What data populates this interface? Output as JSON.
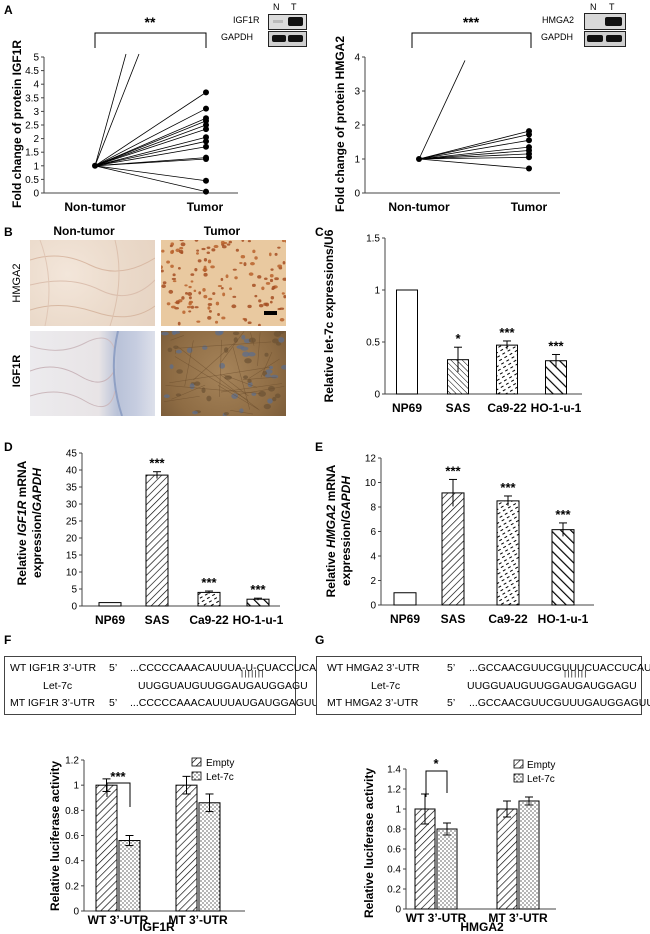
{
  "panels": {
    "A": "A",
    "B": "B",
    "C": "C",
    "D": "D",
    "E": "E",
    "F": "F",
    "G": "G"
  },
  "colors": {
    "text": "#000000",
    "axis": "#444444",
    "line": "#000000",
    "ihc_hmga2_normal": "#efe3d8",
    "ihc_hmga2_tumor": "#e6c49a",
    "ihc_igf1r_normal": "#e4e2e6",
    "ihc_igf1r_tumor": "#9a7a4c"
  },
  "blot_A": {
    "lane_n": "N",
    "lane_t": "T",
    "row1": "IGF1R",
    "row2": "GAPDH"
  },
  "blot_A2": {
    "lane_n": "N",
    "lane_t": "T",
    "row1": "HMGA2",
    "row2": "GAPDH"
  },
  "ihc": {
    "col1": "Non-tumor",
    "col2": "Tumor",
    "row1": "HMGA2",
    "row2": "IGF1R"
  },
  "chart_data": [
    {
      "id": "A-left",
      "type": "line",
      "ylabel": "Fold change of protein IGF1R",
      "categories": [
        "Non-tumor",
        "Tumor"
      ],
      "ylim": [
        0,
        5
      ],
      "yticks": [
        "0",
        "0.5",
        "1",
        "1.5",
        "2",
        "2.5",
        "3",
        "3.5",
        "4",
        "4.5",
        "5"
      ],
      "significance": "**",
      "baseline": 1,
      "tumor_values": [
        3.7,
        3.1,
        2.75,
        2.65,
        2.5,
        2.35,
        2.05,
        1.9,
        1.7,
        1.3,
        1.25,
        0.45,
        0.05
      ],
      "outliers_above_axis": 2
    },
    {
      "id": "A-right",
      "type": "line",
      "ylabel": "Fold change of protein HMGA2",
      "categories": [
        "Non-tumor",
        "Tumor"
      ],
      "ylim": [
        0,
        4
      ],
      "yticks": [
        "0",
        "1",
        "2",
        "3",
        "4"
      ],
      "significance": "***",
      "baseline": 1,
      "tumor_values": [
        1.82,
        1.72,
        1.55,
        1.35,
        1.25,
        1.15,
        1.05,
        0.72
      ],
      "outlier_value": 3.9
    },
    {
      "id": "C",
      "type": "bar",
      "ylabel": "Relative let-7c expressions/U6",
      "categories": [
        "NP69",
        "SAS",
        "Ca9-22",
        "HO-1-u-1"
      ],
      "values": [
        1,
        0.33,
        0.47,
        0.32
      ],
      "errors": [
        0,
        0.12,
        0.04,
        0.06
      ],
      "stars": [
        "",
        "*",
        "***",
        "***"
      ],
      "ylim": [
        0,
        1.5
      ],
      "yticks": [
        "0",
        "0.5",
        "1",
        "1.5"
      ]
    },
    {
      "id": "D",
      "type": "bar",
      "ylabel_line1": "Relative ",
      "ylabel_italic1": "IGF1R",
      "ylabel_line1b": " mRNA",
      "ylabel_line2": "expression/",
      "ylabel_italic2": "GAPDH",
      "categories": [
        "NP69",
        "SAS",
        "Ca9-22",
        "HO-1-u-1"
      ],
      "values": [
        1,
        38.5,
        4,
        2
      ],
      "errors": [
        0,
        1.0,
        0.4,
        0.3
      ],
      "stars": [
        "",
        "***",
        "***",
        "***"
      ],
      "ylim": [
        0,
        45
      ],
      "yticks": [
        "0",
        "5",
        "10",
        "15",
        "20",
        "25",
        "30",
        "35",
        "40",
        "45"
      ]
    },
    {
      "id": "E",
      "type": "bar",
      "ylabel_line1": "Relative ",
      "ylabel_italic1": "HMGA2",
      "ylabel_line1b": " mRNA",
      "ylabel_line2": "expression/",
      "ylabel_italic2": "GAPDH",
      "categories": [
        "NP69",
        "SAS",
        "Ca9-22",
        "HO-1-u-1"
      ],
      "values": [
        1,
        9.15,
        8.5,
        6.15
      ],
      "errors": [
        0,
        1.1,
        0.4,
        0.55
      ],
      "stars": [
        "",
        "***",
        "***",
        "***"
      ],
      "ylim": [
        0,
        12
      ],
      "yticks": [
        "0",
        "2",
        "4",
        "6",
        "8",
        "10",
        "12"
      ]
    },
    {
      "id": "F",
      "type": "bar",
      "title": "IGF1R",
      "ylabel": "Relative luciferase activity",
      "categories": [
        "WT 3’-UTR",
        "MT 3’-UTR"
      ],
      "series": [
        {
          "name": "Empty",
          "values": [
            1.0,
            1.0
          ],
          "errors": [
            0.05,
            0.07
          ]
        },
        {
          "name": "Let-7c",
          "values": [
            0.56,
            0.86
          ],
          "errors": [
            0.04,
            0.07
          ]
        }
      ],
      "significance": "***",
      "ylim": [
        0,
        1.2
      ],
      "yticks": [
        "0",
        "0.2",
        "0.4",
        "0.6",
        "0.8",
        "1",
        "1.2"
      ]
    },
    {
      "id": "G",
      "type": "bar",
      "title": "HMGA2",
      "ylabel": "Relative luciferase activity",
      "categories": [
        "WT 3’-UTR",
        "MT 3’-UTR"
      ],
      "series": [
        {
          "name": "Empty",
          "values": [
            1.0,
            1.0
          ],
          "errors": [
            0.15,
            0.08
          ]
        },
        {
          "name": "Let-7c",
          "values": [
            0.8,
            1.08
          ],
          "errors": [
            0.06,
            0.04
          ]
        }
      ],
      "significance": "*",
      "ylim": [
        0,
        1.4
      ],
      "yticks": [
        "0",
        "0.2",
        "0.4",
        "0.6",
        "0.8",
        "1",
        "1.2",
        "1.4"
      ]
    }
  ],
  "seq_F": {
    "wt_label": "WT IGF1R 3’-UTR",
    "wt_5p": "5’",
    "wt_seq": "...CCCCCAAACAUUUA-U-CUACCUCAU",
    "let_label": "Let-7c",
    "let_seq": "UUGGUAUGUUGGAUGAUGGAGU",
    "bonds": "|||||||",
    "mt_label": "MT IGF1R 3’-UTR",
    "mt_5p": "5’",
    "mt_seq": "...CCCCCAAACAUUUAUGAUGGAGUU"
  },
  "seq_G": {
    "wt_label": "WT HMGA2 3’-UTR",
    "wt_5p": "5’",
    "wt_seq": "...GCCAACGUUCGUUUCUACCUCAU",
    "let_label": "Let-7c",
    "let_seq": "UUGGUAUGUUGGAUGAUGGAGU",
    "bonds": "|||||||",
    "mt_label": "MT HMGA2 3’-UTR",
    "mt_5p": "5’",
    "mt_seq": "...GCCAACGUUCGUUUGAUGGAGUU"
  }
}
